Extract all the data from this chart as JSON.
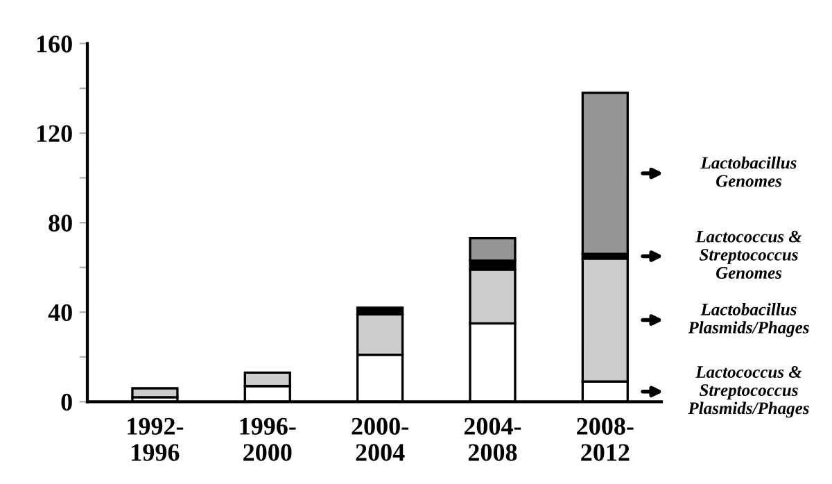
{
  "chart_data": {
    "type": "bar",
    "stacked": true,
    "categories": [
      "1992-\n1996",
      "1996-\n2000",
      "2000-\n2004",
      "2004-\n2008",
      "2008-\n2012"
    ],
    "series": [
      {
        "name": "Lactococcus & Streptococcus Plasmids/Phages",
        "color": "#ffffff",
        "values": [
          2,
          7,
          21,
          35,
          9
        ]
      },
      {
        "name": "Lactobacillus Plasmids/Phages",
        "color": "#cccccc",
        "values": [
          4,
          6,
          18,
          24,
          55
        ]
      },
      {
        "name": "Lactococcus & Streptococcus Genomes",
        "color": "#000000",
        "values": [
          null,
          null,
          3,
          4,
          2
        ]
      },
      {
        "name": "Lactobacillus Genomes",
        "color": "#969696",
        "values": [
          null,
          null,
          null,
          10,
          72
        ]
      }
    ],
    "ylim": [
      0,
      160
    ],
    "yticks": [
      0,
      {
        "value": 20,
        "label": null
      },
      40,
      {
        "value": 60,
        "label": null
      },
      80,
      {
        "value": 100,
        "label": null
      },
      120,
      {
        "value": 140,
        "label": null
      },
      160
    ],
    "grid": false,
    "legend": "right"
  }
}
